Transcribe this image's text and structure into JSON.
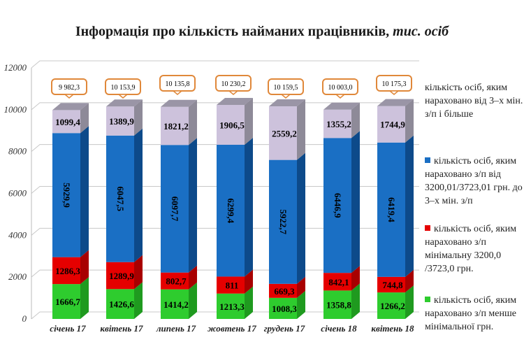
{
  "chart_data": {
    "type": "bar",
    "stacked": true,
    "title": "Інформація про кількість найманих працівників,",
    "title_unit": "тис. осіб",
    "categories": [
      "січень 17",
      "квітень 17",
      "липень 17",
      "жовтень 17",
      "грудень 17",
      "січень 18",
      "квітень 18"
    ],
    "ylim": [
      0,
      12000
    ],
    "yticks": [
      "0",
      "2000",
      "4000",
      "6000",
      "8000",
      "10000",
      "12000"
    ],
    "grid": true,
    "legend_position": "right",
    "series": [
      {
        "name": "кількість осіб, яким нараховано з/п менше мінімальної грн.",
        "color": "#2ecc2e",
        "side": "#1f9a1f",
        "values": [
          1666.7,
          1426.6,
          1414.2,
          1213.3,
          1008.3,
          1358.8,
          1266.2
        ],
        "labels": [
          "1666,7",
          "1426,6",
          "1414,2",
          "1213,3",
          "1008,3",
          "1358,8",
          "1266,2"
        ]
      },
      {
        "name": "кількість осіб, яким нараховано з/п мінімальну 3200,0 /3723,0 грн.",
        "color": "#e50000",
        "side": "#a80000",
        "values": [
          1286.3,
          1289.9,
          802.7,
          811,
          669.3,
          842.1,
          744.8
        ],
        "labels": [
          "1286,3",
          "1289,9",
          "802,7",
          "811",
          "669,3",
          "842,1",
          "744,8"
        ]
      },
      {
        "name": "кількість осіб, яким нараховано з/п від 3200,01/3723,01 грн. до 3–х мін. з/п",
        "color": "#1a6fc4",
        "side": "#0d4a8a",
        "values": [
          5929.9,
          6047.5,
          6097.7,
          6299.4,
          5922.7,
          6446.9,
          6419.4
        ],
        "labels": [
          "5929,9",
          "6047,5",
          "6097,7",
          "6299,4",
          "5922,7",
          "6446,9",
          "6419,4"
        ]
      },
      {
        "name": "кількість осіб, яким нараховано від 3–х мін. з/п і більше",
        "color": "#cdc2dc",
        "side": "#8e8a98",
        "values": [
          1099.4,
          1389.9,
          1821.2,
          1906.5,
          2559.2,
          1355.2,
          1744.9
        ],
        "labels": [
          "1099,4",
          "1389,9",
          "1821,2",
          "1906,5",
          "2559,2",
          "1355,2",
          "1744,9"
        ]
      }
    ],
    "totals": [
      "9 982,3",
      "10 153,9",
      "10 135,8",
      "10 230,2",
      "10 159,5",
      "10 003,0",
      "10 175,3"
    ],
    "callout_color": "#e0883a"
  }
}
